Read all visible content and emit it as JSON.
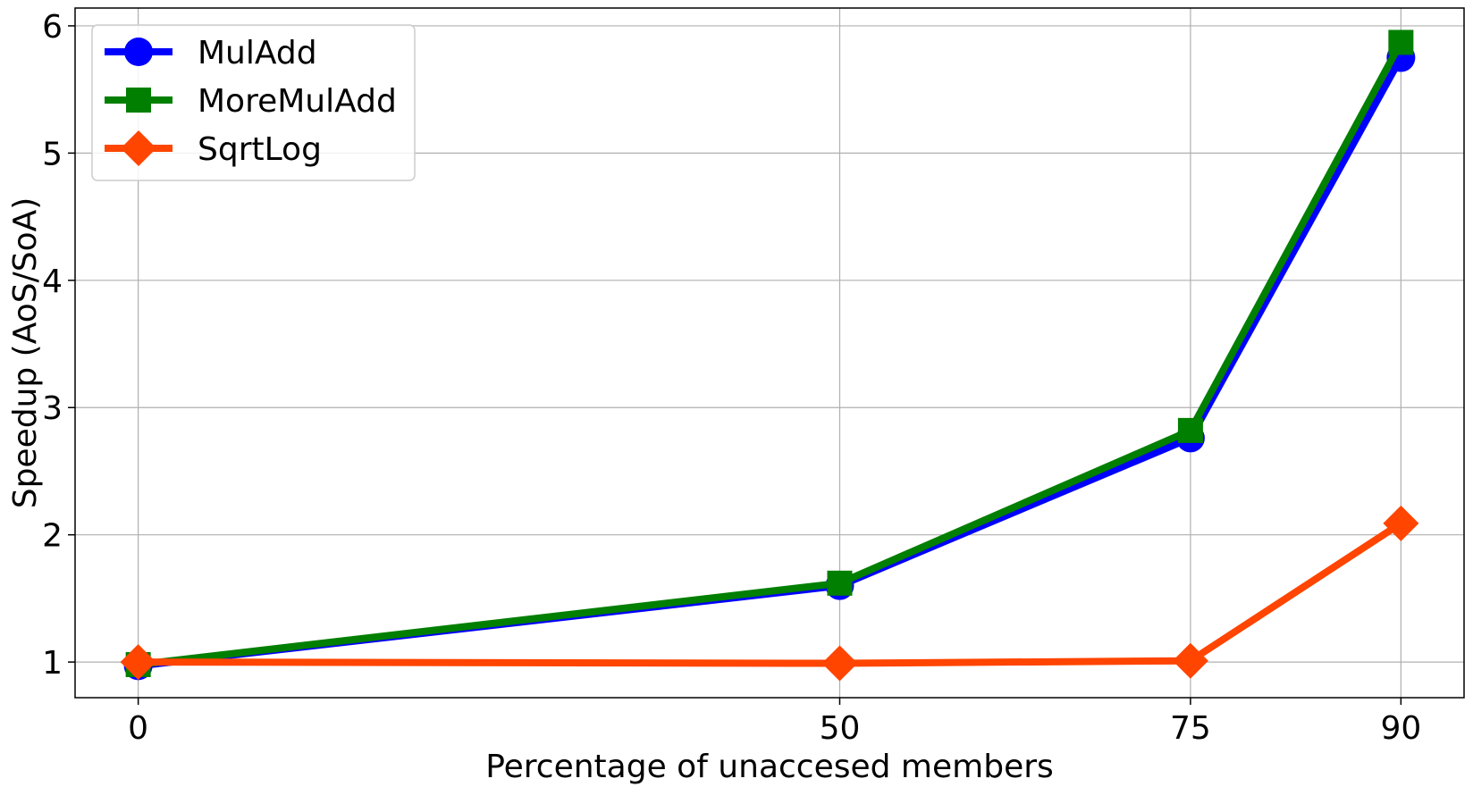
{
  "chart_data": {
    "type": "line",
    "title": "",
    "xlabel": "Percentage of unaccesed members",
    "ylabel": "Speedup (AoS/SoA)",
    "x": [
      0,
      50,
      75,
      90
    ],
    "xticks": [
      "0",
      "50",
      "75",
      "90"
    ],
    "yticks": [
      "1",
      "2",
      "3",
      "4",
      "5",
      "6"
    ],
    "xlim": [
      -4.5,
      94.5
    ],
    "ylim": [
      0.72,
      6.14
    ],
    "grid": true,
    "legend_position": "top-left",
    "series": [
      {
        "name": "MulAdd",
        "values": [
          0.97,
          1.6,
          2.76,
          5.75
        ],
        "color": "#0000ff",
        "marker": "circle"
      },
      {
        "name": "MoreMulAdd",
        "values": [
          0.98,
          1.62,
          2.82,
          5.87
        ],
        "color": "#007f00",
        "marker": "square"
      },
      {
        "name": "SqrtLog",
        "values": [
          1.0,
          0.99,
          1.01,
          2.09
        ],
        "color": "#ff4500",
        "marker": "diamond"
      }
    ]
  }
}
